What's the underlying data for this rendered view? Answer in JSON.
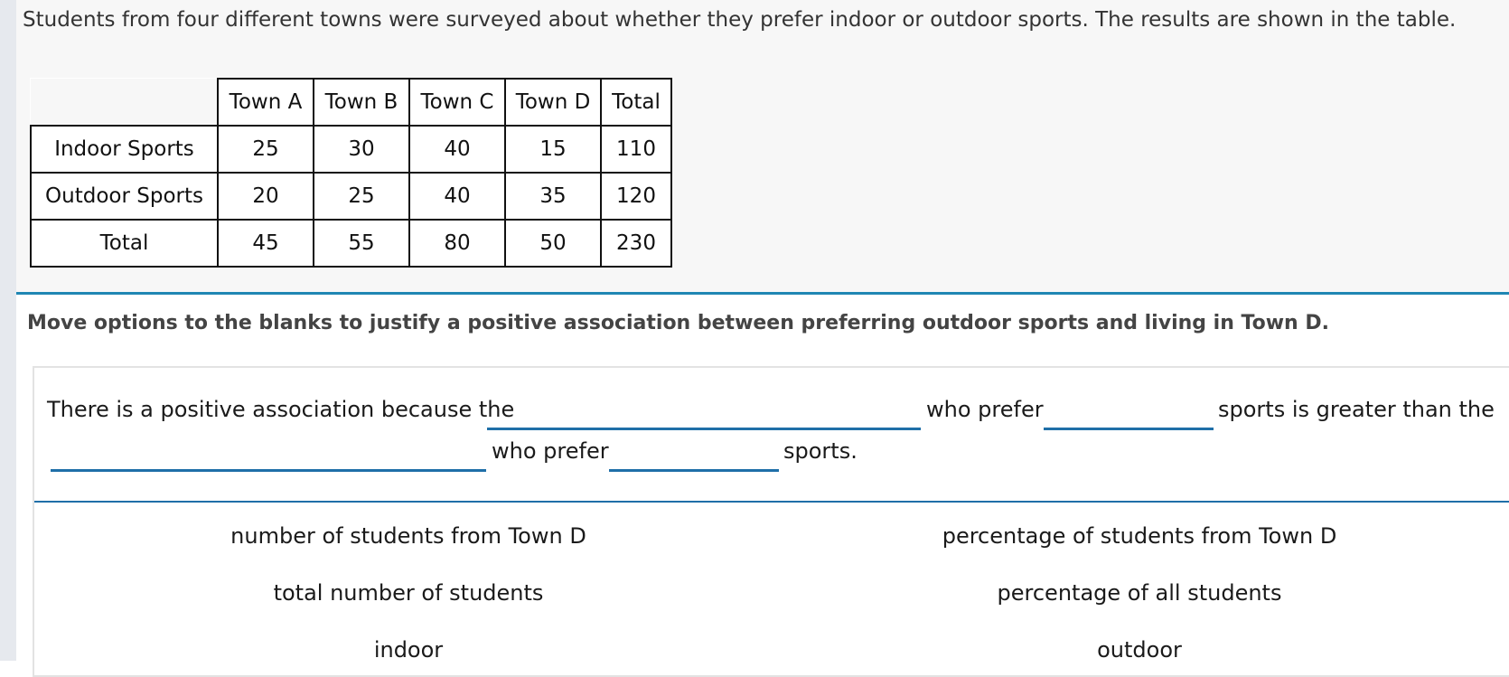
{
  "intro": "Students from four different towns were surveyed about whether they prefer indoor or outdoor sports. The results are shown in the table.",
  "table": {
    "columns": [
      "Town A",
      "Town B",
      "Town C",
      "Town D",
      "Total"
    ],
    "rows": [
      {
        "label": "Indoor Sports",
        "values": [
          "25",
          "30",
          "40",
          "15",
          "110"
        ]
      },
      {
        "label": "Outdoor Sports",
        "values": [
          "20",
          "25",
          "40",
          "35",
          "120"
        ]
      },
      {
        "label": "Total",
        "values": [
          "45",
          "55",
          "80",
          "50",
          "230"
        ]
      }
    ]
  },
  "question": "Move options to the blanks to justify a positive association between preferring outdoor sports and living in Town D.",
  "sentence": {
    "part1": "There is a positive association because the",
    "part2": "who prefer",
    "part3": "sports is greater than the",
    "part4": "who prefer",
    "part5": "sports."
  },
  "options": [
    "number of students from Town D",
    "percentage of students from Town D",
    "total number of students",
    "percentage of all students",
    "indoor",
    "outdoor"
  ],
  "colors": {
    "accent": "#1f86b3",
    "blank_underline": "#1f6fa8",
    "stimulus_bg": "#f7f7f7"
  }
}
